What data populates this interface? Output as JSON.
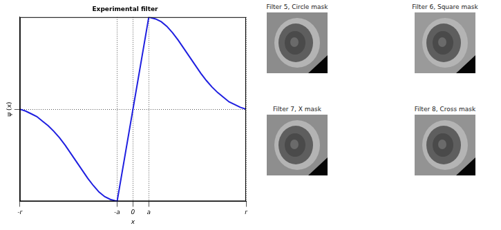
{
  "chart_data": {
    "type": "line",
    "title": "Experimental filter",
    "x_label": "x",
    "y_label": "ψ (x)",
    "x": [
      -1,
      -0.95,
      -0.9,
      -0.85,
      -0.8,
      -0.75,
      -0.7,
      -0.65,
      -0.6,
      -0.55,
      -0.5,
      -0.45,
      -0.4,
      -0.35,
      -0.3,
      -0.25,
      -0.2,
      -0.14,
      0.14,
      0.2,
      0.25,
      0.3,
      0.35,
      0.4,
      0.45,
      0.5,
      0.55,
      0.6,
      0.65,
      0.7,
      0.75,
      0.8,
      0.85,
      0.9,
      0.95,
      1
    ],
    "values": [
      0,
      -0.02,
      -0.05,
      -0.08,
      -0.13,
      -0.18,
      -0.24,
      -0.31,
      -0.39,
      -0.48,
      -0.57,
      -0.66,
      -0.75,
      -0.83,
      -0.9,
      -0.95,
      -0.98,
      -1,
      1,
      0.98,
      0.95,
      0.9,
      0.83,
      0.75,
      0.66,
      0.57,
      0.48,
      0.39,
      0.31,
      0.24,
      0.18,
      0.13,
      0.08,
      0.05,
      0.02,
      0
    ],
    "color": "#1f1fe0",
    "xlim": [
      -1,
      1
    ],
    "xticks": [
      {
        "value": -1,
        "label": "-r"
      },
      {
        "value": -0.14,
        "label": "-a"
      },
      0,
      {
        "value": 0.14,
        "label": "a"
      },
      {
        "value": 1,
        "label": "r"
      }
    ],
    "ylim": [
      -1,
      1
    ],
    "yticks": [
      0
    ],
    "grid": true,
    "tick_labels": "x"
  },
  "panels": [
    {
      "title": "Filter 5, Circle mask"
    },
    {
      "title": "Filter 6, Square mask"
    },
    {
      "title": "Filter 7, X mask"
    },
    {
      "title": "Filter 8, Cross mask"
    }
  ]
}
